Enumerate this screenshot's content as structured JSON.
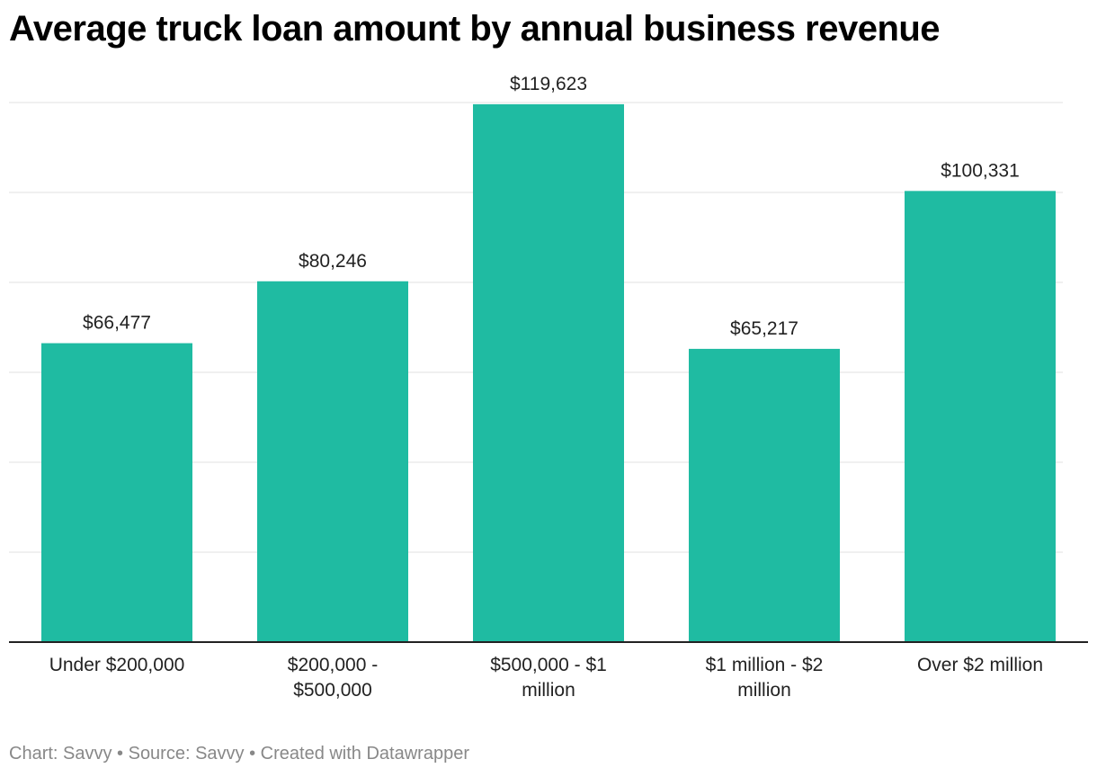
{
  "chart_data": {
    "type": "bar",
    "title": "Average truck loan amount by annual business revenue",
    "categories": [
      "Under $200,000",
      "$200,000 - $500,000",
      "$500,000 - $1 million",
      "$1 million - $2 million",
      "Over $2 million"
    ],
    "values": [
      66477,
      80246,
      119623,
      65217,
      100331
    ],
    "value_labels": [
      "$66,477",
      "$80,246",
      "$119,623",
      "$65,217",
      "$100,331"
    ],
    "color": "#1fbba2",
    "ylim": [
      0,
      120000
    ],
    "yticks": [
      0,
      20000,
      40000,
      60000,
      80000,
      100000,
      120000
    ],
    "grid": true,
    "footer": "Chart: Savvy • Source: Savvy • Created with Datawrapper"
  }
}
